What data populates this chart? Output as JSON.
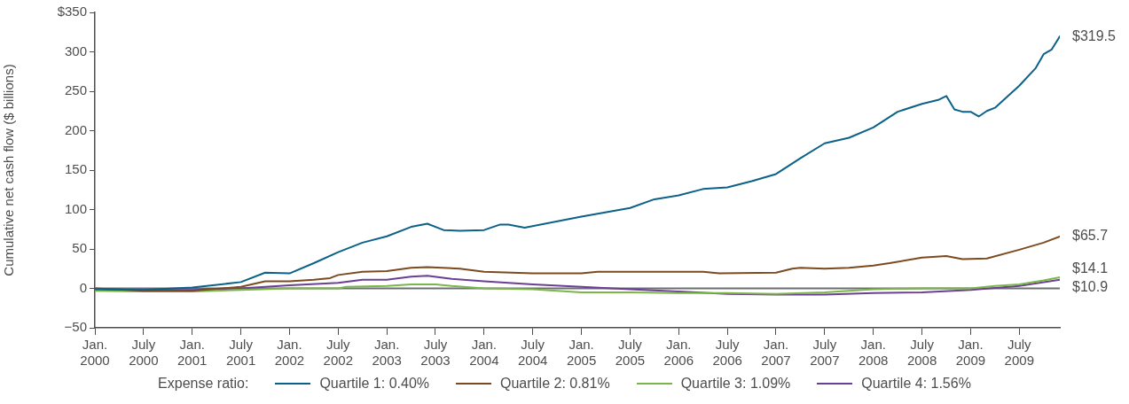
{
  "chart_data": {
    "type": "line",
    "ylabel": "Cumulative net cash flow ($ billions)",
    "legend_title": "Expense ratio:",
    "legend": "bottom",
    "grid": false,
    "marker": "none",
    "line_style": "solid",
    "xlim": [
      "2000-01",
      "2009-12"
    ],
    "xticks": [
      {
        "value": "2000-01",
        "label": "Jan. 2000"
      },
      {
        "value": "2000-07",
        "label": "July 2000"
      },
      {
        "value": "2001-01",
        "label": "Jan. 2001"
      },
      {
        "value": "2001-07",
        "label": "July 2001"
      },
      {
        "value": "2002-01",
        "label": "Jan. 2002"
      },
      {
        "value": "2002-07",
        "label": "July 2002"
      },
      {
        "value": "2003-01",
        "label": "Jan. 2003"
      },
      {
        "value": "2003-07",
        "label": "July 2003"
      },
      {
        "value": "2004-01",
        "label": "Jan. 2004"
      },
      {
        "value": "2004-07",
        "label": "July 2004"
      },
      {
        "value": "2005-01",
        "label": "Jan. 2005"
      },
      {
        "value": "2005-07",
        "label": "July 2005"
      },
      {
        "value": "2006-01",
        "label": "Jan. 2006"
      },
      {
        "value": "2006-07",
        "label": "July 2006"
      },
      {
        "value": "2007-01",
        "label": "Jan. 2007"
      },
      {
        "value": "2007-07",
        "label": "July 2007"
      },
      {
        "value": "2008-01",
        "label": "Jan. 2008"
      },
      {
        "value": "2008-07",
        "label": "July 2008"
      },
      {
        "value": "2009-01",
        "label": "Jan. 2009"
      },
      {
        "value": "2009-07",
        "label": "July 2009"
      }
    ],
    "ylim": [
      -50,
      350
    ],
    "yticks": [
      {
        "value": -50,
        "label": "−50"
      },
      0,
      50,
      100,
      150,
      200,
      250,
      300,
      {
        "value": 350,
        "label": "$350"
      }
    ],
    "ref_lines": [
      {
        "axis": "y",
        "value": 0,
        "color": "#6d6e71"
      }
    ],
    "series": [
      {
        "name": "Quartile 1: 0.40%",
        "color": "#0b6188",
        "x": [
          "2000-01",
          "2000-07",
          "2001-01",
          "2001-07",
          "2001-10",
          "2002-01",
          "2002-04",
          "2002-07",
          "2002-10",
          "2003-01",
          "2003-04",
          "2003-06",
          "2003-08",
          "2003-10",
          "2004-01",
          "2004-03",
          "2004-04",
          "2004-06",
          "2005-01",
          "2005-07",
          "2005-10",
          "2006-01",
          "2006-04",
          "2006-07",
          "2006-10",
          "2007-01",
          "2007-04",
          "2007-07",
          "2007-10",
          "2008-01",
          "2008-04",
          "2008-07",
          "2008-09",
          "2008-10",
          "2008-11",
          "2008-12",
          "2009-01",
          "2009-02",
          "2009-03",
          "2009-04",
          "2009-07",
          "2009-09",
          "2009-10",
          "2009-11",
          "2009-12"
        ],
        "values": [
          -1,
          -2,
          1,
          8,
          20,
          19,
          32,
          46,
          58,
          66,
          78,
          82,
          74,
          73,
          74,
          81,
          81,
          77,
          91,
          102,
          113,
          118,
          126,
          128,
          136,
          145,
          165,
          184,
          191,
          204,
          224,
          234,
          239,
          244,
          227,
          224,
          224,
          218,
          225,
          229,
          257,
          279,
          297,
          303,
          319.5
        ],
        "value_labels": [
          null,
          null,
          null,
          null,
          null,
          null,
          null,
          null,
          null,
          null,
          null,
          null,
          null,
          null,
          null,
          null,
          null,
          null,
          null,
          null,
          null,
          null,
          null,
          null,
          null,
          null,
          null,
          null,
          null,
          null,
          null,
          null,
          null,
          null,
          null,
          null,
          null,
          null,
          null,
          null,
          null,
          null,
          null,
          null,
          "$319.5"
        ]
      },
      {
        "name": "Quartile 2: 0.81%",
        "color": "#7b4a1e",
        "x": [
          "2000-01",
          "2000-07",
          "2001-01",
          "2001-07",
          "2001-10",
          "2002-01",
          "2002-04",
          "2002-06",
          "2002-07",
          "2002-10",
          "2003-01",
          "2003-04",
          "2003-06",
          "2003-10",
          "2004-01",
          "2004-07",
          "2005-01",
          "2005-03",
          "2005-07",
          "2006-01",
          "2006-04",
          "2006-06",
          "2007-01",
          "2007-03",
          "2007-04",
          "2007-07",
          "2007-10",
          "2008-01",
          "2008-03",
          "2008-07",
          "2008-10",
          "2008-12",
          "2009-03",
          "2009-07",
          "2009-10",
          "2009-12"
        ],
        "values": [
          0,
          -3,
          -3,
          2,
          9,
          9,
          11,
          13,
          17,
          21,
          22,
          26,
          27,
          25,
          21,
          19,
          19,
          21,
          21,
          21,
          21,
          19,
          20,
          25,
          26,
          25,
          26,
          29,
          32,
          39,
          41,
          37,
          38,
          49,
          58,
          65.7
        ],
        "value_labels": [
          null,
          null,
          null,
          null,
          null,
          null,
          null,
          null,
          null,
          null,
          null,
          null,
          null,
          null,
          null,
          null,
          null,
          null,
          null,
          null,
          null,
          null,
          null,
          null,
          null,
          null,
          null,
          null,
          null,
          null,
          null,
          null,
          null,
          null,
          null,
          "$65.7"
        ]
      },
      {
        "name": "Quartile 3: 1.09%",
        "color": "#7ab648",
        "x": [
          "2000-01",
          "2000-07",
          "2001-01",
          "2001-07",
          "2002-01",
          "2002-07",
          "2002-08",
          "2003-01",
          "2003-04",
          "2003-07",
          "2003-09",
          "2004-01",
          "2004-07",
          "2005-01",
          "2005-07",
          "2006-01",
          "2006-07",
          "2007-01",
          "2007-07",
          "2008-01",
          "2008-07",
          "2009-01",
          "2009-04",
          "2009-07",
          "2009-10",
          "2009-12"
        ],
        "values": [
          -3,
          -4,
          -4,
          -2,
          0,
          0,
          2,
          3,
          5,
          5,
          3,
          0,
          -1,
          -5,
          -5,
          -6,
          -6,
          -7,
          -5,
          -1,
          0,
          0,
          3,
          5,
          10,
          14.1
        ],
        "value_labels": [
          null,
          null,
          null,
          null,
          null,
          null,
          null,
          null,
          null,
          null,
          null,
          null,
          null,
          null,
          null,
          null,
          null,
          null,
          null,
          null,
          null,
          null,
          null,
          null,
          null,
          "$14.1"
        ]
      },
      {
        "name": "Quartile 4: 1.56%",
        "color": "#6b3f94",
        "x": [
          "2000-01",
          "2000-07",
          "2001-01",
          "2001-07",
          "2002-01",
          "2002-07",
          "2002-10",
          "2003-01",
          "2003-04",
          "2003-06",
          "2003-09",
          "2004-01",
          "2004-07",
          "2005-01",
          "2005-07",
          "2006-01",
          "2006-07",
          "2007-01",
          "2007-07",
          "2008-01",
          "2008-07",
          "2009-01",
          "2009-07",
          "2009-12"
        ],
        "values": [
          -1,
          -2,
          -2,
          0,
          4,
          7,
          11,
          11,
          15,
          16,
          12,
          9,
          5,
          2,
          -1,
          -4,
          -7,
          -8,
          -8,
          -6,
          -5,
          -2,
          3,
          10.9
        ],
        "value_labels": [
          null,
          null,
          null,
          null,
          null,
          null,
          null,
          null,
          null,
          null,
          null,
          null,
          null,
          null,
          null,
          null,
          null,
          null,
          null,
          null,
          null,
          null,
          null,
          "$10.9"
        ]
      }
    ]
  }
}
